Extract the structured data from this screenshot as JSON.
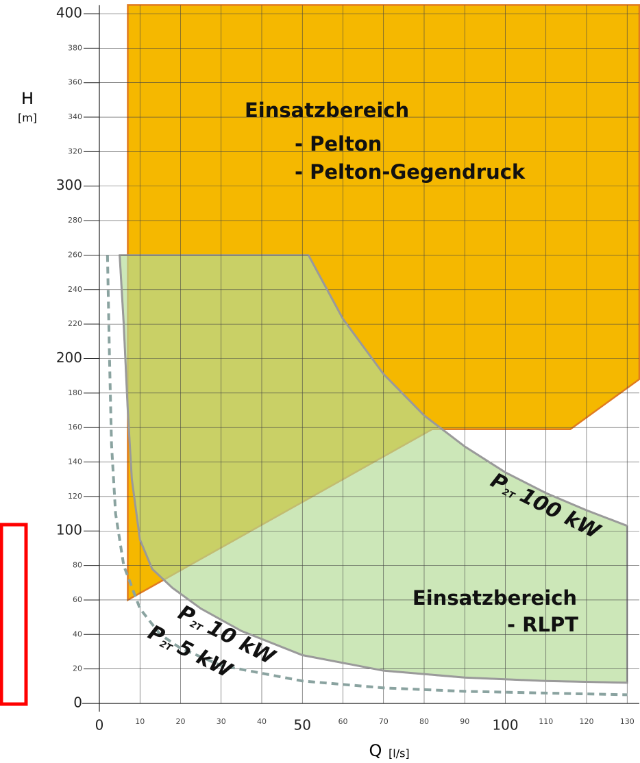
{
  "chart_data": {
    "type": "region",
    "xlabel": "Q",
    "xunit": "[l/s]",
    "ylabel": "H",
    "yunit": "[m]",
    "xlim": [
      0,
      133
    ],
    "ylim": [
      0,
      405
    ],
    "xticks": [
      0,
      10,
      20,
      30,
      40,
      50,
      60,
      70,
      80,
      90,
      100,
      110,
      120,
      130
    ],
    "yticks": [
      0,
      20,
      40,
      60,
      80,
      100,
      120,
      140,
      160,
      180,
      200,
      220,
      240,
      260,
      280,
      300,
      320,
      340,
      360,
      380,
      400
    ],
    "grid": true,
    "regions": [
      {
        "color": "#f5b800",
        "edge": "#e07b20",
        "labels": [
          "Einsatzbereich",
          "- Pelton",
          "- Pelton-Gegendruck"
        ],
        "x": [
          7,
          7,
          133,
          133,
          116,
          82,
          7
        ],
        "y": [
          60,
          405,
          405,
          188,
          159,
          159,
          60
        ]
      },
      {
        "color": "#b4dc96",
        "edge": "#9a9a9a",
        "labels": [
          "Einsatzbereich",
          "- RLPT"
        ],
        "x": [
          5,
          51.5,
          60,
          70,
          80,
          90,
          100,
          110,
          120,
          130,
          130,
          110,
          90,
          70,
          50,
          35,
          25,
          18,
          13,
          10,
          8,
          7,
          6,
          5
        ],
        "y": [
          260,
          260,
          223,
          191,
          167,
          149,
          134,
          122,
          112,
          103,
          12,
          13,
          15,
          19,
          28,
          42,
          55,
          67,
          78,
          95,
          130,
          170,
          220,
          260
        ]
      }
    ],
    "series": [
      {
        "label": {
          "p": "P",
          "sub": "2T",
          "power": "100 kW"
        },
        "color": "#9a9a9a",
        "dashed": false,
        "x": [
          51.5,
          60,
          70,
          80,
          90,
          100,
          110,
          120,
          130
        ],
        "y": [
          260,
          223,
          191,
          167,
          149,
          134,
          122,
          112,
          103
        ]
      },
      {
        "label": {
          "p": "P",
          "sub": "2T",
          "power": "10 kW"
        },
        "color": "#9a9a9a",
        "dashed": false,
        "x": [
          5,
          6,
          7,
          8,
          10,
          13,
          18,
          25,
          35,
          50,
          70,
          90,
          110,
          130
        ],
        "y": [
          260,
          220,
          170,
          130,
          95,
          78,
          67,
          55,
          42,
          28,
          19,
          15,
          13,
          12
        ]
      },
      {
        "label": {
          "p": "P",
          "sub": "2T",
          "power": "5 kW"
        },
        "color": "#8aa3a0",
        "dashed": true,
        "x": [
          2,
          2.5,
          3,
          4,
          6,
          10,
          15,
          20,
          30,
          50,
          70,
          90,
          110,
          130
        ],
        "y": [
          260,
          200,
          150,
          110,
          80,
          55,
          40,
          32,
          22,
          13,
          9,
          7,
          6,
          5
        ]
      }
    ]
  }
}
